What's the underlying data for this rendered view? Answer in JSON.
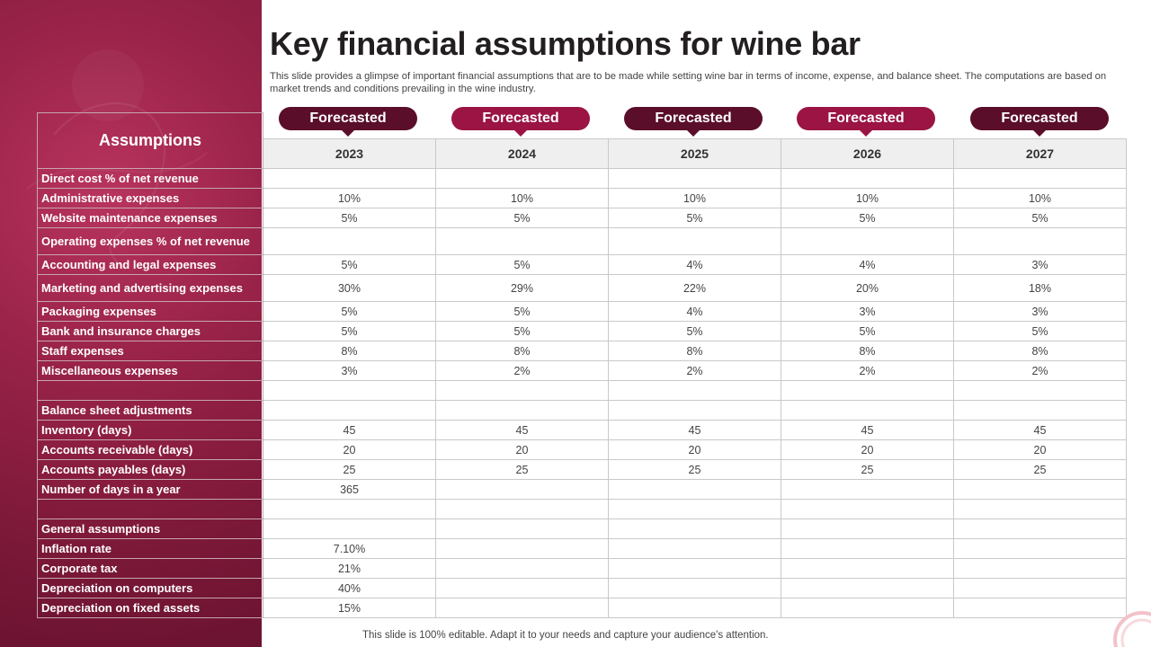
{
  "title": "Key financial assumptions for wine bar",
  "subtitle": "This slide provides a glimpse of important financial assumptions that are to be made while setting wine bar in terms of income, expense, and balance sheet. The computations are based on market trends and conditions prevailing in the wine industry.",
  "footer": "This slide is 100% editable. Adapt it to your needs and capture your audience's attention.",
  "header_label": "Assumptions",
  "forecast_label": "Forecasted",
  "years": [
    "2023",
    "2024",
    "2025",
    "2026",
    "2027"
  ],
  "colors": {
    "panel": "#8a1d40",
    "pill_dark": "#5a0e2a",
    "pill_bright": "#9b1443",
    "grid": "#c9c9c9"
  },
  "rows": [
    {
      "label": "Direct cost % of net revenue",
      "values": [
        "",
        "",
        "",
        "",
        ""
      ]
    },
    {
      "label": "Administrative expenses",
      "values": [
        "10%",
        "10%",
        "10%",
        "10%",
        "10%"
      ]
    },
    {
      "label": "Website maintenance expenses",
      "values": [
        "5%",
        "5%",
        "5%",
        "5%",
        "5%"
      ]
    },
    {
      "label": "Operating expenses % of net revenue",
      "values": [
        "",
        "",
        "",
        "",
        ""
      ]
    },
    {
      "label": "Accounting and legal expenses",
      "values": [
        "5%",
        "5%",
        "4%",
        "4%",
        "3%"
      ]
    },
    {
      "label": "Marketing and advertising expenses",
      "values": [
        "30%",
        "29%",
        "22%",
        "20%",
        "18%"
      ]
    },
    {
      "label": "Packaging expenses",
      "values": [
        "5%",
        "5%",
        "4%",
        "3%",
        "3%"
      ]
    },
    {
      "label": "Bank and insurance charges",
      "values": [
        "5%",
        "5%",
        "5%",
        "5%",
        "5%"
      ]
    },
    {
      "label": "Staff expenses",
      "values": [
        "8%",
        "8%",
        "8%",
        "8%",
        "8%"
      ]
    },
    {
      "label": "Miscellaneous expenses",
      "values": [
        "3%",
        "2%",
        "2%",
        "2%",
        "2%"
      ]
    },
    {
      "label": "",
      "values": [
        "",
        "",
        "",
        "",
        ""
      ]
    },
    {
      "label": "Balance sheet adjustments",
      "values": [
        "",
        "",
        "",
        "",
        ""
      ]
    },
    {
      "label": "Inventory (days)",
      "values": [
        "45",
        "45",
        "45",
        "45",
        "45"
      ]
    },
    {
      "label": "Accounts receivable (days)",
      "values": [
        "20",
        "20",
        "20",
        "20",
        "20"
      ]
    },
    {
      "label": "Accounts payables (days)",
      "values": [
        "25",
        "25",
        "25",
        "25",
        "25"
      ]
    },
    {
      "label": "Number of days in a year",
      "values": [
        "365",
        "",
        "",
        "",
        ""
      ]
    },
    {
      "label": "",
      "values": [
        "",
        "",
        "",
        "",
        ""
      ]
    },
    {
      "label": "General assumptions",
      "values": [
        "",
        "",
        "",
        "",
        ""
      ]
    },
    {
      "label": "Inflation rate",
      "values": [
        "7.10%",
        "",
        "",
        "",
        ""
      ]
    },
    {
      "label": "Corporate tax",
      "values": [
        "21%",
        "",
        "",
        "",
        ""
      ]
    },
    {
      "label": "Depreciation on computers",
      "values": [
        "40%",
        "",
        "",
        "",
        ""
      ]
    },
    {
      "label": "Depreciation on fixed assets",
      "values": [
        "15%",
        "",
        "",
        "",
        ""
      ]
    }
  ]
}
